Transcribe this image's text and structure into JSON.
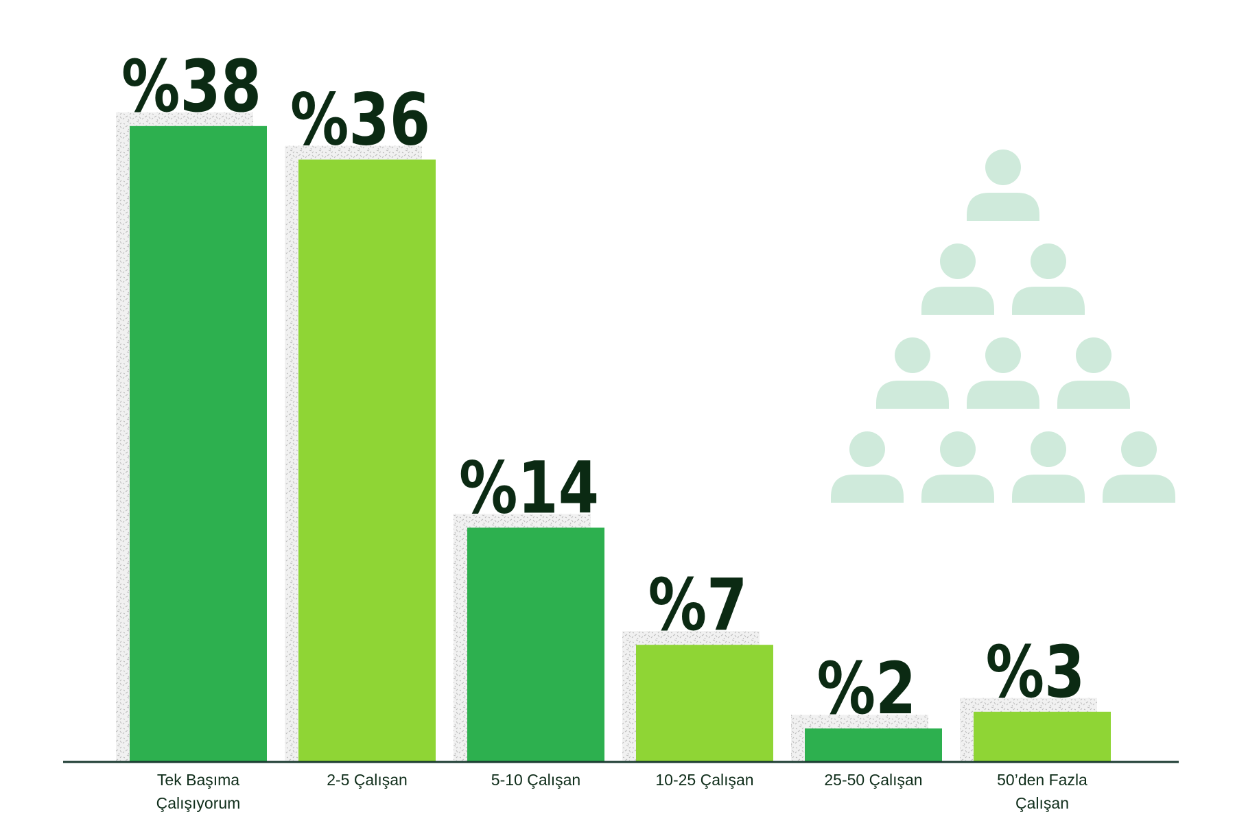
{
  "chart_data": {
    "type": "bar",
    "title": "",
    "xlabel": "",
    "ylabel": "",
    "ylim": [
      0,
      40
    ],
    "grid": false,
    "legend": "none",
    "categories": [
      [
        "Tek Başıma",
        "Çalışıyorum"
      ],
      [
        "2-5 Çalışan"
      ],
      [
        "5-10 Çalışan"
      ],
      [
        "10-25 Çalışan"
      ],
      [
        "25-50 Çalışan"
      ],
      [
        "50’den Fazla",
        "Çalışan"
      ]
    ],
    "values": [
      38,
      36,
      14,
      7,
      2,
      3
    ],
    "value_labels": [
      "%38",
      "%36",
      "%14",
      "%7",
      "%2",
      "%3"
    ],
    "colors": {
      "dark_green": "#2db04f",
      "light_green": "#8fd535",
      "axis": "#1a3a30",
      "value_text": "#0b2a13",
      "people_icon": "#cfeadb"
    },
    "bar_colors": [
      "#2db04f",
      "#8fd535",
      "#2db04f",
      "#8fd535",
      "#2db04f",
      "#8fd535"
    ],
    "decoration": {
      "icon": "people-pyramid-icon",
      "rows": [
        1,
        2,
        3,
        4
      ]
    }
  }
}
